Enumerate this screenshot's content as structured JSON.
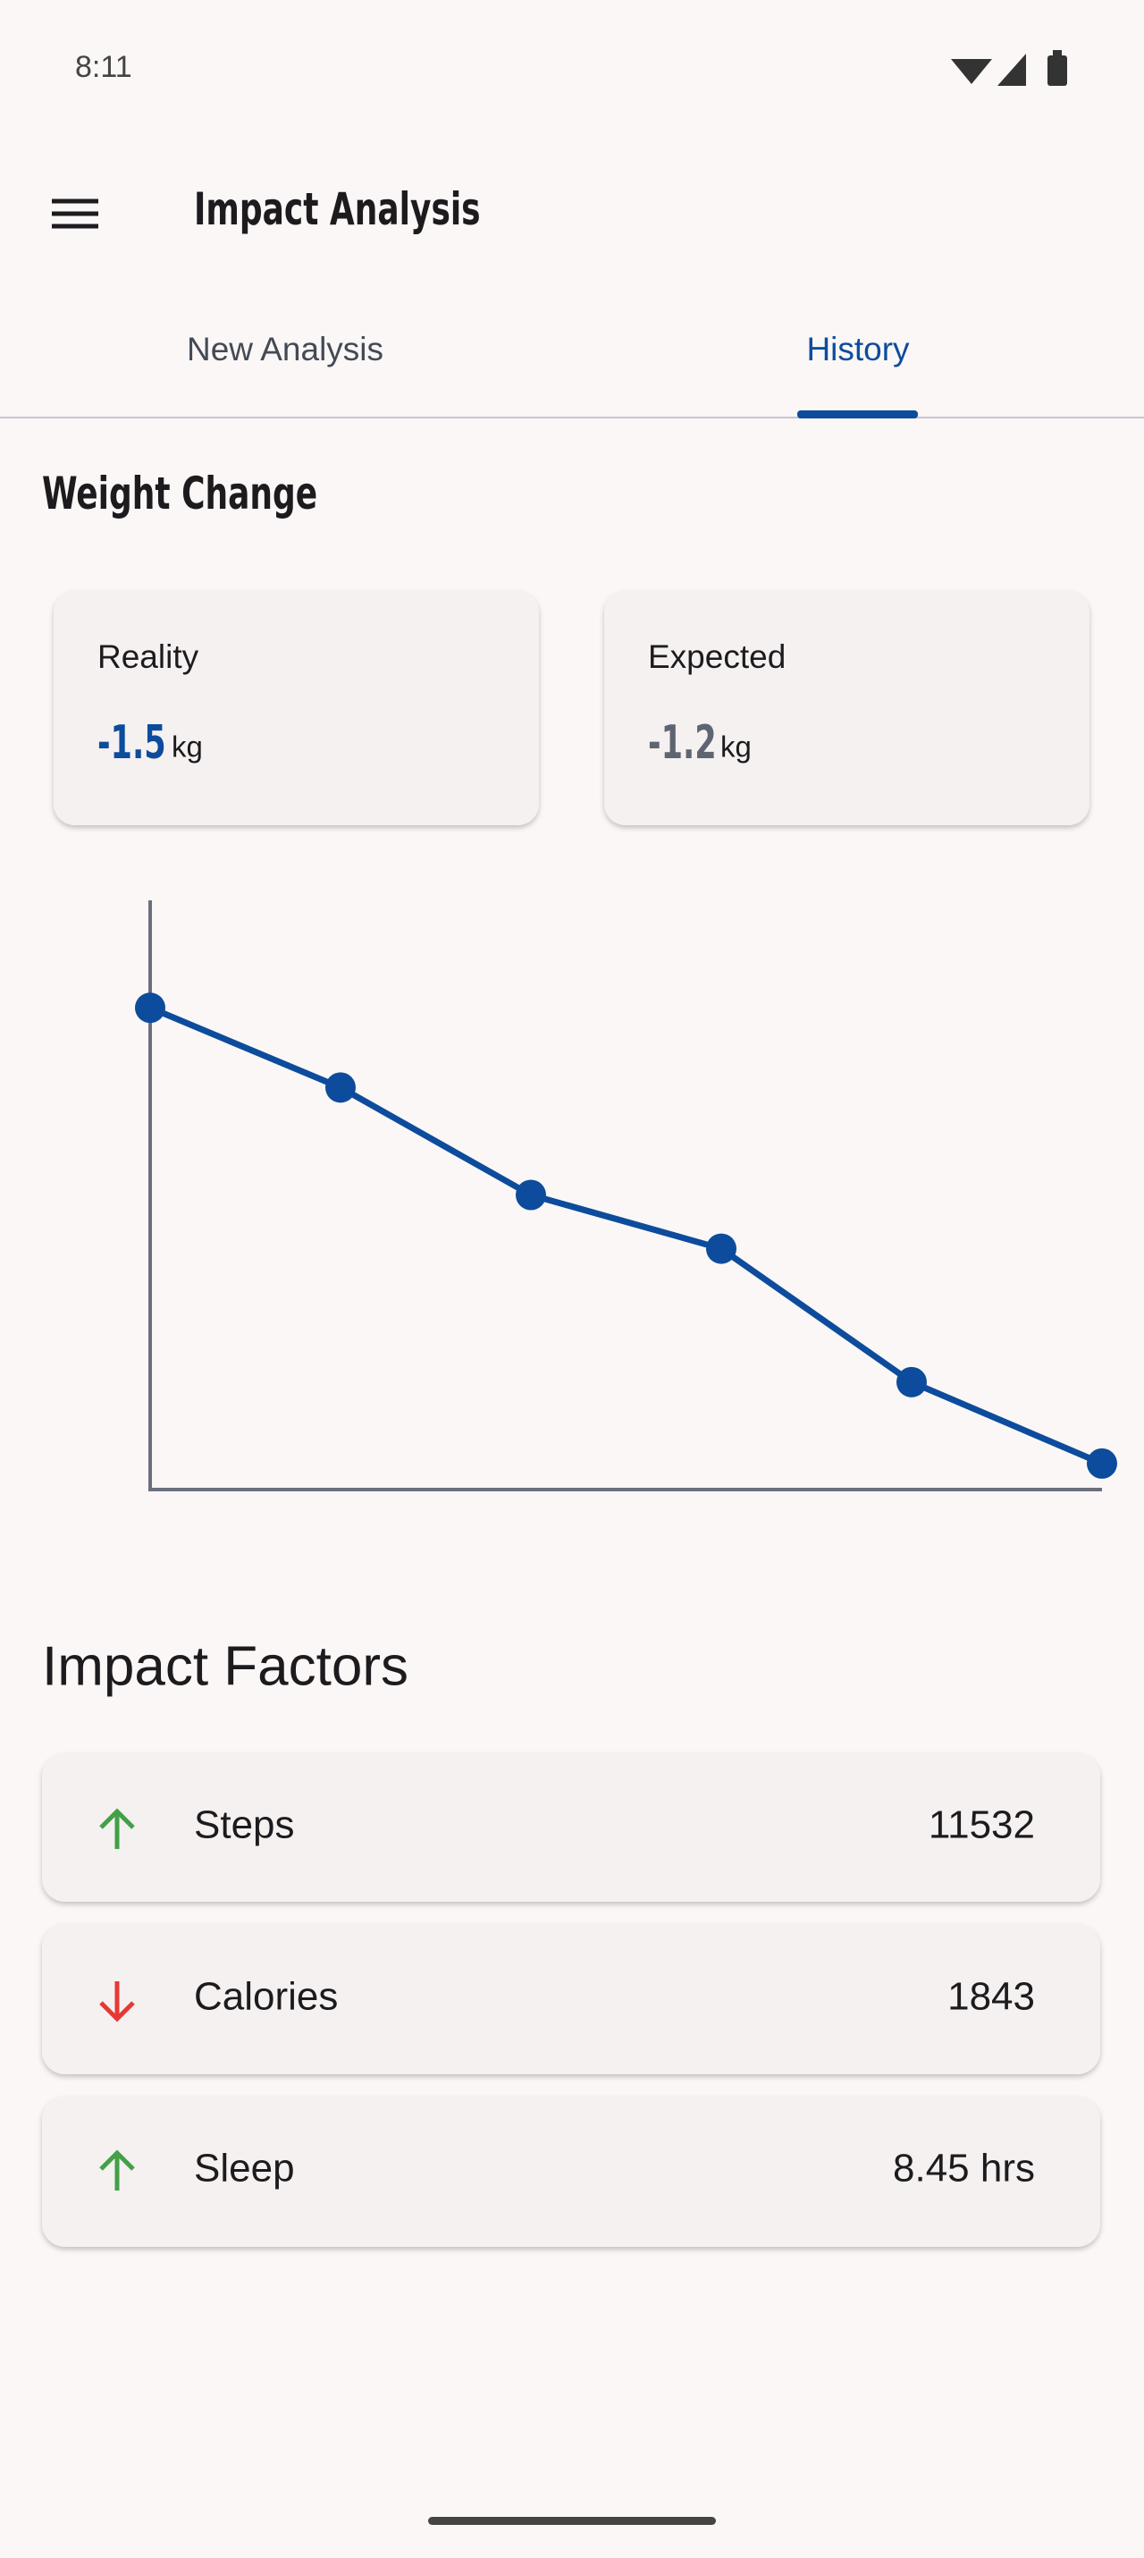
{
  "status_bar": {
    "time": "8:11"
  },
  "app_bar": {
    "title": "Impact Analysis"
  },
  "tabs": [
    "New Analysis",
    "History"
  ],
  "section_title": "Weight Change",
  "cards": [
    {
      "label": "Reality",
      "value": "-1.5",
      "unit": "kg"
    },
    {
      "label": "Expected",
      "value": "-1.2",
      "unit": "kg"
    }
  ],
  "chart_data": {
    "type": "line",
    "categories": [
      null,
      null,
      null,
      null,
      null,
      null
    ],
    "values": [
      296,
      247,
      181,
      148,
      66,
      16
    ],
    "ylim": [
      0,
      362
    ],
    "color": "#0d4c9c"
  },
  "factors_title": "Impact Factors",
  "factors": [
    {
      "label": "Steps",
      "value": "11532"
    },
    {
      "label": "Calories",
      "value": "1843"
    },
    {
      "label": "Sleep",
      "value": "8.45 hrs"
    }
  ]
}
